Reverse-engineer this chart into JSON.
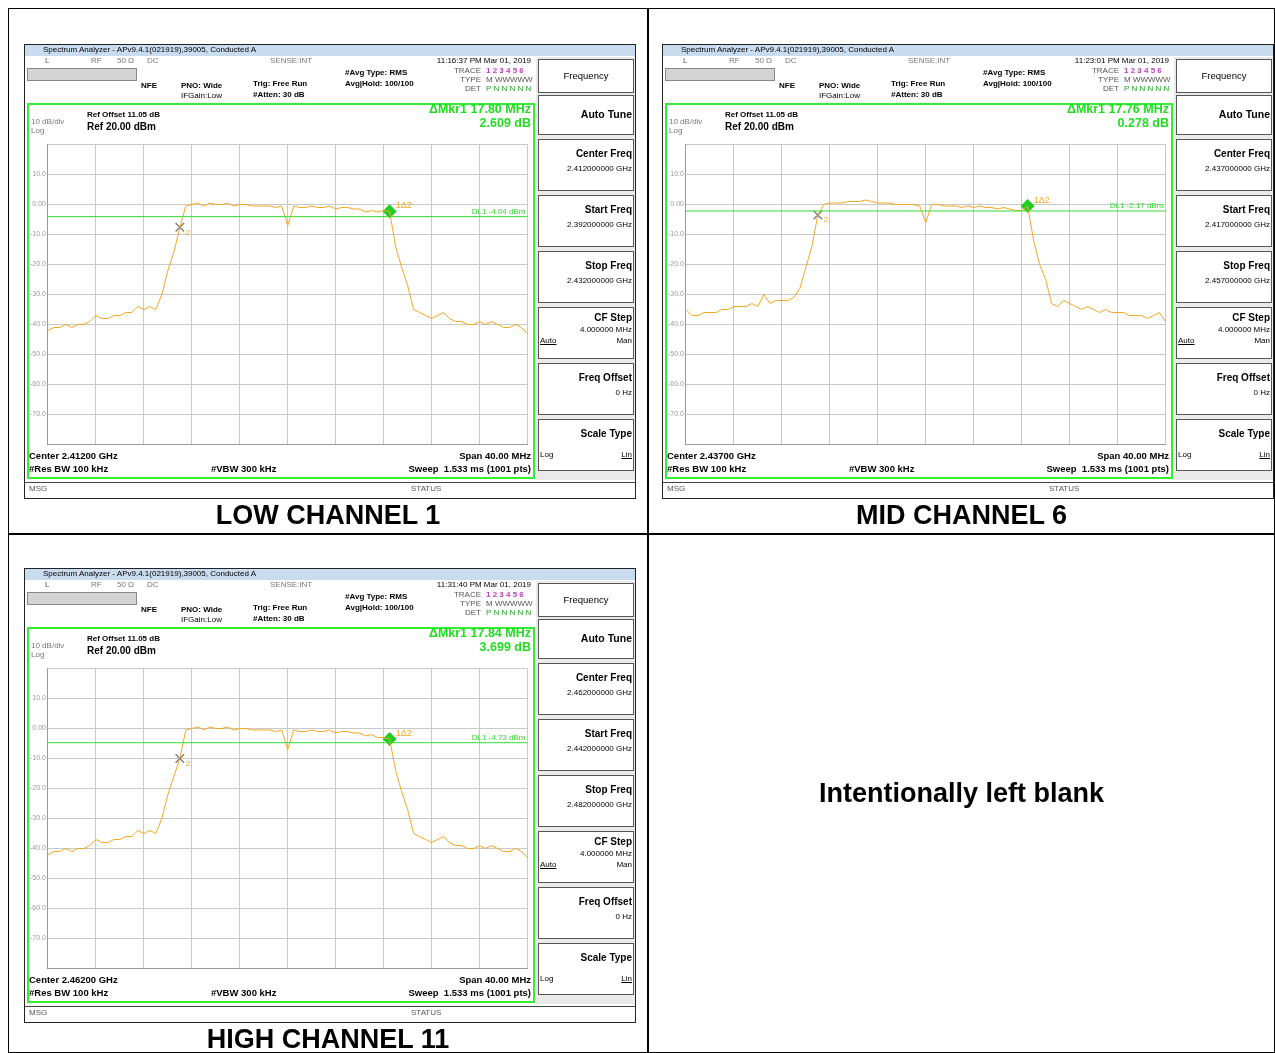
{
  "chart_data": [
    {
      "type": "line",
      "title": "LOW CHANNEL 1",
      "categories": [
        null,
        null,
        null,
        null,
        null,
        null,
        null,
        null,
        null,
        null,
        null,
        null,
        null,
        null,
        null,
        null,
        null,
        null,
        null,
        null,
        null,
        null,
        null,
        null,
        null,
        null,
        null,
        null,
        null,
        null,
        null,
        null,
        null,
        null,
        null,
        null,
        null,
        null,
        null,
        null,
        null,
        null,
        null,
        null,
        null,
        null,
        null,
        null,
        null,
        null,
        null,
        null,
        null,
        null,
        null,
        null,
        null,
        null,
        null,
        null,
        null,
        null,
        null,
        null,
        null,
        null,
        null,
        null,
        null,
        null,
        null,
        null,
        null,
        null,
        null,
        null,
        null,
        null,
        null,
        null,
        null
      ],
      "series": [
        {
          "color": "#f5a623",
          "marker": "none",
          "values": [
            -42,
            -41,
            -41,
            -40,
            -41,
            -40,
            -40,
            -39,
            -37,
            -38,
            -38,
            -37,
            -37,
            -36,
            -36,
            -34,
            -35,
            -34,
            -35,
            -30,
            -22,
            -16,
            -7.6,
            -0.5,
            0,
            0.5,
            -0.5,
            0.5,
            0,
            0,
            0.5,
            -0.5,
            0,
            0,
            -0.5,
            -0.5,
            -0.5,
            -0.5,
            -1,
            -0.5,
            -7,
            -0.5,
            -1,
            -1,
            -0.5,
            -1,
            -1,
            -0.5,
            -1.5,
            -1,
            -1,
            -1.5,
            -1.5,
            -2.5,
            -2,
            -2.5,
            -2,
            -2.3,
            -14,
            -21,
            -27,
            -35,
            -36,
            -37,
            -38,
            -37,
            -36,
            -38,
            -39,
            -39,
            -40,
            -40,
            -39,
            -40,
            -39,
            -40,
            -41,
            -41,
            -40,
            -41,
            -43
          ]
        },
        {
          "name": "2",
          "color": "#808080",
          "marker": "cross",
          "values": [
            null,
            null,
            null,
            null,
            null,
            null,
            null,
            null,
            null,
            null,
            null,
            null,
            null,
            null,
            null,
            null,
            null,
            null,
            null,
            null,
            null,
            null,
            -7.6,
            null,
            null,
            null,
            null,
            null,
            null,
            null,
            null,
            null,
            null,
            null,
            null,
            null,
            null,
            null,
            null,
            null,
            null,
            null,
            null,
            null,
            null,
            null,
            null,
            null,
            null,
            null,
            null,
            null,
            null,
            null,
            null,
            null,
            null,
            null,
            null,
            null,
            null,
            null,
            null,
            null,
            null,
            null,
            null,
            null,
            null,
            null,
            null,
            null,
            null,
            null,
            null,
            null,
            null,
            null,
            null,
            null,
            null
          ]
        },
        {
          "name": "1Δ2",
          "color": "#22cc22",
          "marker": "diamond",
          "values": [
            null,
            null,
            null,
            null,
            null,
            null,
            null,
            null,
            null,
            null,
            null,
            null,
            null,
            null,
            null,
            null,
            null,
            null,
            null,
            null,
            null,
            null,
            null,
            null,
            null,
            null,
            null,
            null,
            null,
            null,
            null,
            null,
            null,
            null,
            null,
            null,
            null,
            null,
            null,
            null,
            null,
            null,
            null,
            null,
            null,
            null,
            null,
            null,
            null,
            null,
            null,
            null,
            null,
            null,
            null,
            null,
            null,
            -2.3,
            null,
            null,
            null,
            null,
            null,
            null,
            null,
            null,
            null,
            null,
            null,
            null,
            null,
            null,
            null,
            null,
            null,
            null,
            null,
            null,
            null,
            null,
            null
          ]
        }
      ],
      "ylim": [
        -80,
        20
      ],
      "yticks": [
        {
          "value": 20,
          "label": null
        },
        {
          "value": 10,
          "label": "10.0"
        },
        {
          "value": 0,
          "label": "0.00"
        },
        {
          "value": -10,
          "label": "-10.0"
        },
        {
          "value": -20,
          "label": "-20.0"
        },
        {
          "value": -30,
          "label": "-30.0"
        },
        {
          "value": -40,
          "label": "-40.0"
        },
        {
          "value": -50,
          "label": "-50.0"
        },
        {
          "value": -60,
          "label": "-60.0"
        },
        {
          "value": -70,
          "label": "-70.0"
        },
        {
          "value": -80,
          "label": null
        }
      ],
      "grid": true,
      "tick_labels": "y",
      "ref_lines": [
        {
          "axis": "y",
          "value": -4.04,
          "label": "DL1 -4.04 dBm",
          "color": "#33dd33"
        }
      ],
      "annotations": [
        "Spectrum Analyzer - APv9.4.1(021919),39005, Conducted A",
        "L",
        "RF",
        "50 Ω",
        "DC",
        "SENSE:INT",
        "11:16:37 PM Mar 01, 2019",
        "NFE",
        "PNO: Wide",
        "IFGain:Low",
        "Trig: Free Run",
        "#Atten: 30 dB",
        "#Avg Type: RMS",
        "Avg|Hold: 100/100",
        "TRACE",
        "1 2 3 4 5 6",
        "TYPE",
        "M WWWWW",
        "DET",
        "P N N N N N",
        "Ref Offset 11.05 dB",
        "Ref 20.00 dBm",
        "10 dB/div",
        "Log",
        "ΔMkr1 17.80 MHz",
        "2.609 dB",
        "Center 2.41200 GHz",
        "Span 40.00 MHz",
        "#Res BW 100 kHz",
        "#VBW 300 kHz",
        "Sweep  1.533 ms (1001 pts)",
        "MSG",
        "STATUS",
        "Frequency",
        "Auto Tune",
        "Center Freq",
        "2.412000000 GHz",
        "Start Freq",
        "2.392000000 GHz",
        "Stop Freq",
        "2.432000000 GHz",
        "CF Step",
        "4.000000 MHz",
        "Auto",
        "Man",
        "Freq Offset",
        "0 Hz",
        "Scale Type",
        "Log",
        "Lin"
      ]
    },
    {
      "type": "line",
      "title": "MID CHANNEL 6",
      "categories": [
        null,
        null,
        null,
        null,
        null,
        null,
        null,
        null,
        null,
        null,
        null,
        null,
        null,
        null,
        null,
        null,
        null,
        null,
        null,
        null,
        null,
        null,
        null,
        null,
        null,
        null,
        null,
        null,
        null,
        null,
        null,
        null,
        null,
        null,
        null,
        null,
        null,
        null,
        null,
        null,
        null,
        null,
        null,
        null,
        null,
        null,
        null,
        null,
        null,
        null,
        null,
        null,
        null,
        null,
        null,
        null,
        null,
        null,
        null,
        null,
        null,
        null,
        null,
        null,
        null,
        null,
        null,
        null,
        null,
        null,
        null,
        null,
        null,
        null,
        null,
        null,
        null,
        null,
        null,
        null,
        null
      ],
      "series": [
        {
          "color": "#f5a623",
          "marker": "none",
          "values": [
            -35,
            -37,
            -37,
            -36,
            -36,
            -36,
            -35,
            -35,
            -34,
            -34,
            -34,
            -33,
            -34,
            -30,
            -33,
            -32,
            -32,
            -32,
            -31,
            -28,
            -21,
            -14,
            -3.5,
            0,
            0.5,
            0.5,
            0.5,
            1,
            1,
            1,
            1.5,
            1,
            0.5,
            0.5,
            0.5,
            0,
            0,
            0,
            0,
            -0.5,
            -6,
            0,
            0,
            -0.5,
            -0.5,
            -0.5,
            -1,
            -0.5,
            -1,
            -0.5,
            -1,
            -1,
            -1.5,
            -1,
            -1.5,
            -2,
            -2,
            -0.5,
            -12,
            -20,
            -25,
            -33,
            -34,
            -32,
            -33,
            -34,
            -35,
            -34,
            -35,
            -36,
            -35,
            -36,
            -36,
            -36,
            -37,
            -37,
            -37,
            -38,
            -37,
            -36,
            -39
          ]
        },
        {
          "name": "2",
          "color": "#808080",
          "marker": "cross",
          "values": [
            null,
            null,
            null,
            null,
            null,
            null,
            null,
            null,
            null,
            null,
            null,
            null,
            null,
            null,
            null,
            null,
            null,
            null,
            null,
            null,
            null,
            null,
            -3.5,
            null,
            null,
            null,
            null,
            null,
            null,
            null,
            null,
            null,
            null,
            null,
            null,
            null,
            null,
            null,
            null,
            null,
            null,
            null,
            null,
            null,
            null,
            null,
            null,
            null,
            null,
            null,
            null,
            null,
            null,
            null,
            null,
            null,
            null,
            null,
            null,
            null,
            null,
            null,
            null,
            null,
            null,
            null,
            null,
            null,
            null,
            null,
            null,
            null,
            null,
            null,
            null,
            null,
            null,
            null,
            null,
            null,
            null
          ]
        },
        {
          "name": "1Δ2",
          "color": "#22cc22",
          "marker": "diamond",
          "values": [
            null,
            null,
            null,
            null,
            null,
            null,
            null,
            null,
            null,
            null,
            null,
            null,
            null,
            null,
            null,
            null,
            null,
            null,
            null,
            null,
            null,
            null,
            null,
            null,
            null,
            null,
            null,
            null,
            null,
            null,
            null,
            null,
            null,
            null,
            null,
            null,
            null,
            null,
            null,
            null,
            null,
            null,
            null,
            null,
            null,
            null,
            null,
            null,
            null,
            null,
            null,
            null,
            null,
            null,
            null,
            null,
            null,
            -0.5,
            null,
            null,
            null,
            null,
            null,
            null,
            null,
            null,
            null,
            null,
            null,
            null,
            null,
            null,
            null,
            null,
            null,
            null,
            null,
            null,
            null,
            null,
            null
          ]
        }
      ],
      "ylim": [
        -80,
        20
      ],
      "yticks": [
        {
          "value": 20,
          "label": null
        },
        {
          "value": 10,
          "label": "10.0"
        },
        {
          "value": 0,
          "label": "0.00"
        },
        {
          "value": -10,
          "label": "-10.0"
        },
        {
          "value": -20,
          "label": "-20.0"
        },
        {
          "value": -30,
          "label": "-30.0"
        },
        {
          "value": -40,
          "label": "-40.0"
        },
        {
          "value": -50,
          "label": "-50.0"
        },
        {
          "value": -60,
          "label": "-60.0"
        },
        {
          "value": -70,
          "label": "-70.0"
        },
        {
          "value": -80,
          "label": null
        }
      ],
      "grid": true,
      "tick_labels": "y",
      "ref_lines": [
        {
          "axis": "y",
          "value": -2.17,
          "label": "DL1 -2.17 dBm",
          "color": "#33dd33"
        }
      ],
      "annotations": [
        "Spectrum Analyzer - APv9.4.1(021919),39005, Conducted A",
        "L",
        "RF",
        "50 Ω",
        "DC",
        "SENSE:INT",
        "11:23:01 PM Mar 01, 2019",
        "NFE",
        "PNO: Wide",
        "IFGain:Low",
        "Trig: Free Run",
        "#Atten: 30 dB",
        "#Avg Type: RMS",
        "Avg|Hold: 100/100",
        "TRACE",
        "1 2 3 4 5 6",
        "TYPE",
        "M WWWWW",
        "DET",
        "P N N N N N",
        "Ref Offset 11.05 dB",
        "Ref 20.00 dBm",
        "10 dB/div",
        "Log",
        "ΔMkr1 17.76 MHz",
        "0.278 dB",
        "Center 2.43700 GHz",
        "Span 40.00 MHz",
        "#Res BW 100 kHz",
        "#VBW 300 kHz",
        "Sweep  1.533 ms (1001 pts)",
        "MSG",
        "STATUS",
        "Frequency",
        "Auto Tune",
        "Center Freq",
        "2.437000000 GHz",
        "Start Freq",
        "2.417000000 GHz",
        "Stop Freq",
        "2.457000000 GHz",
        "CF Step",
        "4.000000 MHz",
        "Auto",
        "Man",
        "Freq Offset",
        "0 Hz",
        "Scale Type",
        "Log",
        "Lin"
      ]
    },
    {
      "type": "line",
      "title": "HIGH CHANNEL 11",
      "categories": [
        null,
        null,
        null,
        null,
        null,
        null,
        null,
        null,
        null,
        null,
        null,
        null,
        null,
        null,
        null,
        null,
        null,
        null,
        null,
        null,
        null,
        null,
        null,
        null,
        null,
        null,
        null,
        null,
        null,
        null,
        null,
        null,
        null,
        null,
        null,
        null,
        null,
        null,
        null,
        null,
        null,
        null,
        null,
        null,
        null,
        null,
        null,
        null,
        null,
        null,
        null,
        null,
        null,
        null,
        null,
        null,
        null,
        null,
        null,
        null,
        null,
        null,
        null,
        null,
        null,
        null,
        null,
        null,
        null,
        null,
        null,
        null,
        null,
        null,
        null,
        null,
        null,
        null,
        null,
        null,
        null
      ],
      "series": [
        {
          "color": "#f5a623",
          "marker": "none",
          "values": [
            -42,
            -41,
            -41,
            -40,
            -41,
            -40,
            -40,
            -39,
            -37,
            -38,
            -38,
            -37,
            -37,
            -36,
            -36,
            -34,
            -35,
            -34,
            -35,
            -30,
            -22,
            -16,
            -10,
            -0.5,
            0,
            0.5,
            -0.5,
            0.5,
            0,
            0,
            0.5,
            -0.5,
            0,
            0,
            -0.5,
            -0.5,
            -0.5,
            -0.5,
            -1,
            -0.5,
            -7,
            -0.5,
            -1,
            -1,
            -0.5,
            -1,
            -1,
            -0.5,
            -1.5,
            -1,
            -1,
            -1.5,
            -1.5,
            -2.5,
            -2,
            -3,
            -3,
            -3.5,
            -14,
            -21,
            -27,
            -35,
            -36,
            -37,
            -38,
            -37,
            -36,
            -38,
            -39,
            -39,
            -40,
            -40,
            -39,
            -40,
            -39,
            -40,
            -41,
            -41,
            -40,
            -41,
            -43
          ]
        },
        {
          "name": "2",
          "color": "#808080",
          "marker": "cross",
          "values": [
            null,
            null,
            null,
            null,
            null,
            null,
            null,
            null,
            null,
            null,
            null,
            null,
            null,
            null,
            null,
            null,
            null,
            null,
            null,
            null,
            null,
            null,
            -10,
            null,
            null,
            null,
            null,
            null,
            null,
            null,
            null,
            null,
            null,
            null,
            null,
            null,
            null,
            null,
            null,
            null,
            null,
            null,
            null,
            null,
            null,
            null,
            null,
            null,
            null,
            null,
            null,
            null,
            null,
            null,
            null,
            null,
            null,
            null,
            null,
            null,
            null,
            null,
            null,
            null,
            null,
            null,
            null,
            null,
            null,
            null,
            null,
            null,
            null,
            null,
            null,
            null,
            null,
            null,
            null,
            null,
            null
          ]
        },
        {
          "name": "1Δ2",
          "color": "#22cc22",
          "marker": "diamond",
          "values": [
            null,
            null,
            null,
            null,
            null,
            null,
            null,
            null,
            null,
            null,
            null,
            null,
            null,
            null,
            null,
            null,
            null,
            null,
            null,
            null,
            null,
            null,
            null,
            null,
            null,
            null,
            null,
            null,
            null,
            null,
            null,
            null,
            null,
            null,
            null,
            null,
            null,
            null,
            null,
            null,
            null,
            null,
            null,
            null,
            null,
            null,
            null,
            null,
            null,
            null,
            null,
            null,
            null,
            null,
            null,
            null,
            null,
            -3.5,
            null,
            null,
            null,
            null,
            null,
            null,
            null,
            null,
            null,
            null,
            null,
            null,
            null,
            null,
            null,
            null,
            null,
            null,
            null,
            null,
            null,
            null,
            null
          ]
        }
      ],
      "ylim": [
        -80,
        20
      ],
      "yticks": [
        {
          "value": 20,
          "label": null
        },
        {
          "value": 10,
          "label": "10.0"
        },
        {
          "value": 0,
          "label": "0.00"
        },
        {
          "value": -10,
          "label": "-10.0"
        },
        {
          "value": -20,
          "label": "-20.0"
        },
        {
          "value": -30,
          "label": "-30.0"
        },
        {
          "value": -40,
          "label": "-40.0"
        },
        {
          "value": -50,
          "label": "-50.0"
        },
        {
          "value": -60,
          "label": "-60.0"
        },
        {
          "value": -70,
          "label": "-70.0"
        },
        {
          "value": -80,
          "label": null
        }
      ],
      "grid": true,
      "tick_labels": "y",
      "ref_lines": [
        {
          "axis": "y",
          "value": -4.73,
          "label": "DL1 -4.73 dBm",
          "color": "#33dd33"
        }
      ],
      "annotations": [
        "Spectrum Analyzer - APv9.4.1(021919),39005, Conducted A",
        "L",
        "RF",
        "50 Ω",
        "DC",
        "SENSE:INT",
        "11:31:40 PM Mar 01, 2019",
        "NFE",
        "PNO: Wide",
        "IFGain:Low",
        "Trig: Free Run",
        "#Atten: 30 dB",
        "#Avg Type: RMS",
        "Avg|Hold: 100/100",
        "TRACE",
        "1 2 3 4 5 6",
        "TYPE",
        "M WWWWW",
        "DET",
        "P N N N N N",
        "Ref Offset 11.05 dB",
        "Ref 20.00 dBm",
        "10 dB/div",
        "Log",
        "ΔMkr1 17.84 MHz",
        "3.699 dB",
        "Center 2.46200 GHz",
        "Span 40.00 MHz",
        "#Res BW 100 kHz",
        "#VBW 300 kHz",
        "Sweep  1.533 ms (1001 pts)",
        "MSG",
        "STATUS",
        "Frequency",
        "Auto Tune",
        "Center Freq",
        "2.462000000 GHz",
        "Start Freq",
        "2.442000000 GHz",
        "Stop Freq",
        "2.482000000 GHz",
        "CF Step",
        "4.000000 MHz",
        "Auto",
        "Man",
        "Freq Offset",
        "0 Hz",
        "Scale Type",
        "Log",
        "Lin"
      ]
    },
    {
      "type": "other",
      "title": "Intentionally left blank"
    }
  ]
}
